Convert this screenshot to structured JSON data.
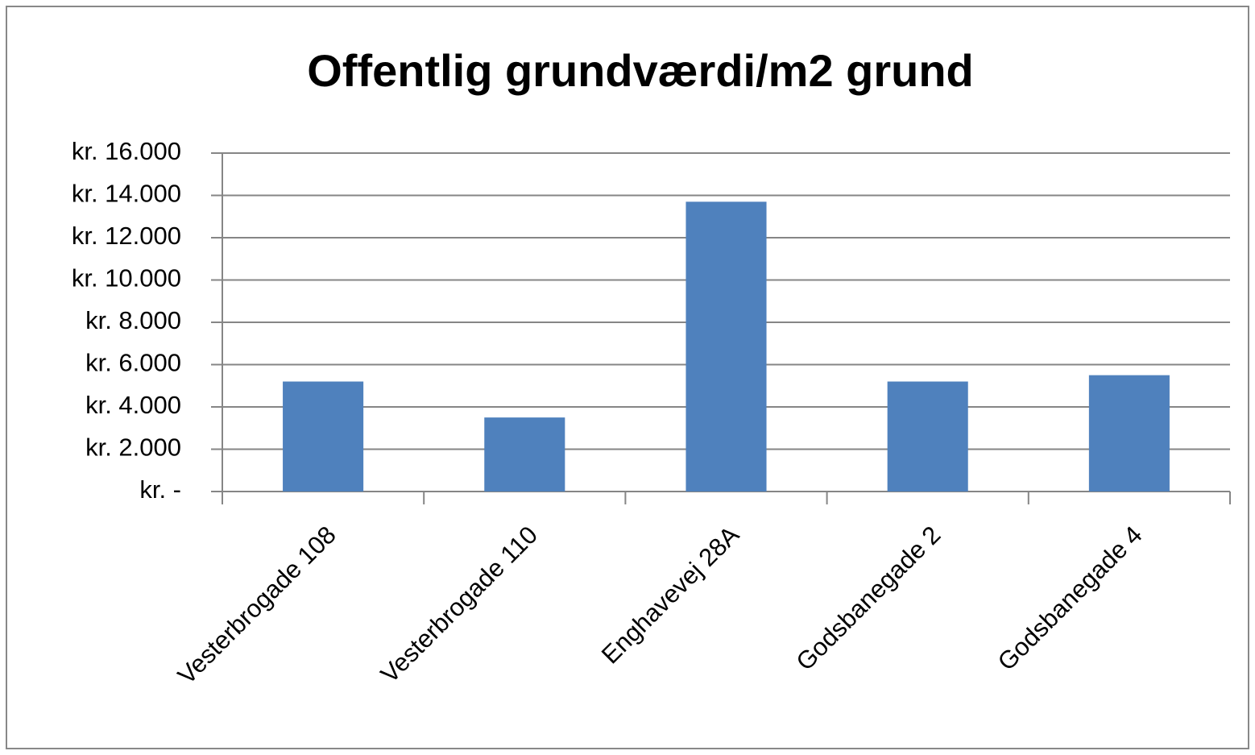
{
  "chart_data": {
    "type": "bar",
    "title": "Offentlig grundværdi/m2 grund",
    "categories": [
      "Vesterbrogade 108",
      "Vesterbrogade 110",
      "Enghavevej 28A",
      "Godsbanegade 2",
      "Godsbanegade 4"
    ],
    "values": [
      5200,
      3500,
      13700,
      5200,
      5500
    ],
    "color": "#4f81bd",
    "ylim": [
      0,
      16000
    ],
    "yticks": [
      {
        "value": 0,
        "label": "kr. -"
      },
      {
        "value": 2000,
        "label": "kr. 2.000"
      },
      {
        "value": 4000,
        "label": "kr. 4.000"
      },
      {
        "value": 6000,
        "label": "kr. 6.000"
      },
      {
        "value": 8000,
        "label": "kr. 8.000"
      },
      {
        "value": 10000,
        "label": "kr. 10.000"
      },
      {
        "value": 12000,
        "label": "kr. 12.000"
      },
      {
        "value": 14000,
        "label": "kr. 14.000"
      },
      {
        "value": 16000,
        "label": "kr. 16.000"
      }
    ],
    "grid": true
  }
}
